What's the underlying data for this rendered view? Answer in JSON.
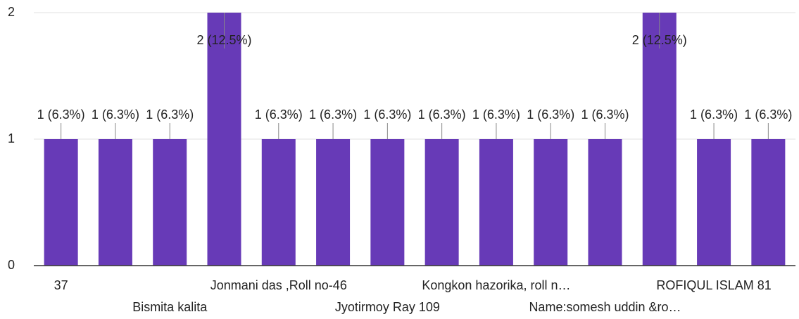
{
  "chart_data": {
    "type": "bar",
    "categories": [
      "37",
      null,
      "Bismita kalita",
      null,
      "Jonmani das ,Roll no-46",
      null,
      "Jyotirmoy Ray 109",
      null,
      "Kongkon hazorika, roll n…",
      null,
      "Name:somesh uddin &ro…",
      null,
      "ROFIQUL ISLAM 81",
      null
    ],
    "values": [
      1,
      1,
      1,
      2,
      1,
      1,
      1,
      1,
      1,
      1,
      1,
      2,
      1,
      1
    ],
    "value_labels": [
      "1 (6.3%)",
      "1 (6.3%)",
      "1 (6.3%)",
      "2 (12.5%)",
      "1 (6.3%)",
      "1 (6.3%)",
      "1 (6.3%)",
      "1 (6.3%)",
      "1 (6.3%)",
      "1 (6.3%)",
      "1 (6.3%)",
      "2 (12.5%)",
      "1 (6.3%)",
      "1 (6.3%)"
    ],
    "color": "#673ab7",
    "ylim": [
      0,
      2
    ],
    "yticks": [
      0,
      1,
      2
    ],
    "grid": true
  }
}
